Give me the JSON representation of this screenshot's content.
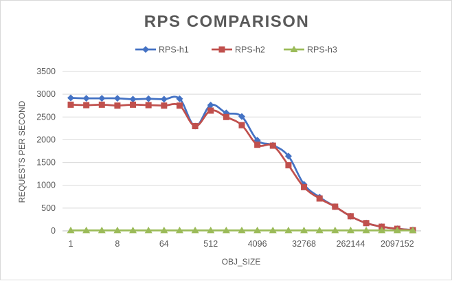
{
  "chart_data": {
    "type": "line",
    "title": "RPS COMPARISON",
    "xlabel": "OBJ_SIZE",
    "ylabel": "REQUESTS PER SECOND",
    "ylim": [
      0,
      3500
    ],
    "yticks": [
      0,
      500,
      1000,
      1500,
      2000,
      2500,
      3000,
      3500
    ],
    "grid": true,
    "legend_position": "top",
    "categories": [
      "1",
      "2",
      "4",
      "8",
      "16",
      "32",
      "64",
      "128",
      "256",
      "512",
      "1024",
      "2048",
      "4096",
      "8192",
      "16384",
      "32768",
      "65536",
      "131072",
      "262144",
      "524288",
      "1048576",
      "2097152",
      "4194304"
    ],
    "x_tick_labels": [
      {
        "index": 0,
        "label": "1"
      },
      {
        "index": 3,
        "label": "8"
      },
      {
        "index": 6,
        "label": "64"
      },
      {
        "index": 9,
        "label": "512"
      },
      {
        "index": 12,
        "label": "4096"
      },
      {
        "index": 15,
        "label": "32768"
      },
      {
        "index": 18,
        "label": "262144"
      },
      {
        "index": 21,
        "label": "2097152"
      }
    ],
    "series": [
      {
        "name": "RPS-h1",
        "color": "#4472c4",
        "marker": "diamond",
        "values": [
          2920,
          2910,
          2910,
          2910,
          2890,
          2900,
          2890,
          2900,
          2300,
          2760,
          2590,
          2510,
          1990,
          1880,
          1640,
          1020,
          740,
          530,
          320,
          170,
          90,
          45,
          20
        ]
      },
      {
        "name": "RPS-h2",
        "color": "#c0504d",
        "marker": "square",
        "values": [
          2770,
          2760,
          2770,
          2750,
          2770,
          2760,
          2750,
          2750,
          2300,
          2640,
          2500,
          2320,
          1890,
          1870,
          1440,
          960,
          710,
          530,
          320,
          170,
          90,
          45,
          15
        ]
      },
      {
        "name": "RPS-h3",
        "color": "#9bbb59",
        "marker": "triangle",
        "values": [
          10,
          10,
          10,
          10,
          10,
          10,
          10,
          10,
          10,
          10,
          10,
          10,
          10,
          10,
          10,
          10,
          10,
          10,
          10,
          10,
          10,
          10,
          10
        ]
      }
    ]
  }
}
